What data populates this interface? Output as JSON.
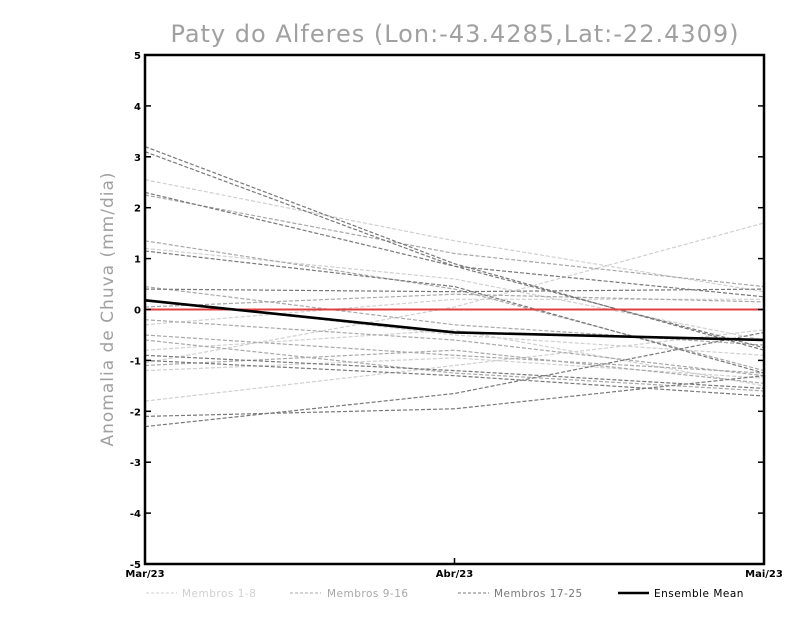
{
  "chart_data": {
    "type": "line",
    "title": "Paty do Alferes (Lon:-43.4285,Lat:-22.4309)",
    "ylabel": "Anomalia de Chuva (mm/dia)",
    "xlabel": "",
    "categories": [
      "Mar/23",
      "Abr/23",
      "Mai/23"
    ],
    "ylim": [
      -5,
      5
    ],
    "yticks": [
      "5",
      "4",
      "3",
      "2",
      "1",
      "0",
      "-1",
      "-2",
      "-3",
      "-4",
      "-5"
    ],
    "zero_line_color": "#e04040",
    "legend_position": "bottom",
    "groups": [
      {
        "name": "Membros 1-8",
        "color": "#d0d0d0"
      },
      {
        "name": "Membros 9-16",
        "color": "#a8a8a8"
      },
      {
        "name": "Membros 17-25",
        "color": "#787878"
      },
      {
        "name": "Ensemble Mean",
        "color": "#000000"
      }
    ],
    "series": [
      {
        "group": 0,
        "values": [
          2.55,
          1.35,
          0.35
        ]
      },
      {
        "group": 0,
        "values": [
          1.2,
          0.6,
          -0.6
        ]
      },
      {
        "group": 0,
        "values": [
          -1.05,
          0.05,
          1.7
        ]
      },
      {
        "group": 0,
        "values": [
          -1.2,
          -0.95,
          -1.35
        ]
      },
      {
        "group": 0,
        "values": [
          -1.8,
          -1.1,
          -0.4
        ]
      },
      {
        "group": 0,
        "values": [
          0.2,
          -0.5,
          -0.9
        ]
      },
      {
        "group": 0,
        "values": [
          -0.3,
          0.2,
          0.2
        ]
      },
      {
        "group": 0,
        "values": [
          -0.8,
          -0.4,
          -1.5
        ]
      },
      {
        "group": 1,
        "values": [
          2.25,
          1.1,
          0.45
        ]
      },
      {
        "group": 1,
        "values": [
          1.35,
          0.4,
          -1.2
        ]
      },
      {
        "group": 1,
        "values": [
          0.45,
          -0.3,
          -0.7
        ]
      },
      {
        "group": 1,
        "values": [
          -0.2,
          -0.6,
          -1.3
        ]
      },
      {
        "group": 1,
        "values": [
          -0.6,
          -1.25,
          -1.6
        ]
      },
      {
        "group": 1,
        "values": [
          -1.1,
          -0.8,
          -1.45
        ]
      },
      {
        "group": 1,
        "values": [
          0.05,
          0.3,
          0.15
        ]
      },
      {
        "group": 1,
        "values": [
          -0.5,
          -0.9,
          -1.25
        ]
      },
      {
        "group": 2,
        "values": [
          3.2,
          0.9,
          -0.8
        ]
      },
      {
        "group": 2,
        "values": [
          3.1,
          0.85,
          -0.75
        ]
      },
      {
        "group": 2,
        "values": [
          2.3,
          0.85,
          0.25
        ]
      },
      {
        "group": 2,
        "values": [
          1.15,
          0.45,
          -1.25
        ]
      },
      {
        "group": 2,
        "values": [
          0.4,
          0.35,
          0.4
        ]
      },
      {
        "group": 2,
        "values": [
          -0.9,
          -1.2,
          -1.55
        ]
      },
      {
        "group": 2,
        "values": [
          -1.0,
          -1.3,
          -1.7
        ]
      },
      {
        "group": 2,
        "values": [
          -2.1,
          -1.95,
          -1.3
        ]
      },
      {
        "group": 2,
        "values": [
          -2.3,
          -1.65,
          -0.45
        ]
      },
      {
        "group": 3,
        "values": [
          0.18,
          -0.45,
          -0.6
        ]
      }
    ]
  }
}
